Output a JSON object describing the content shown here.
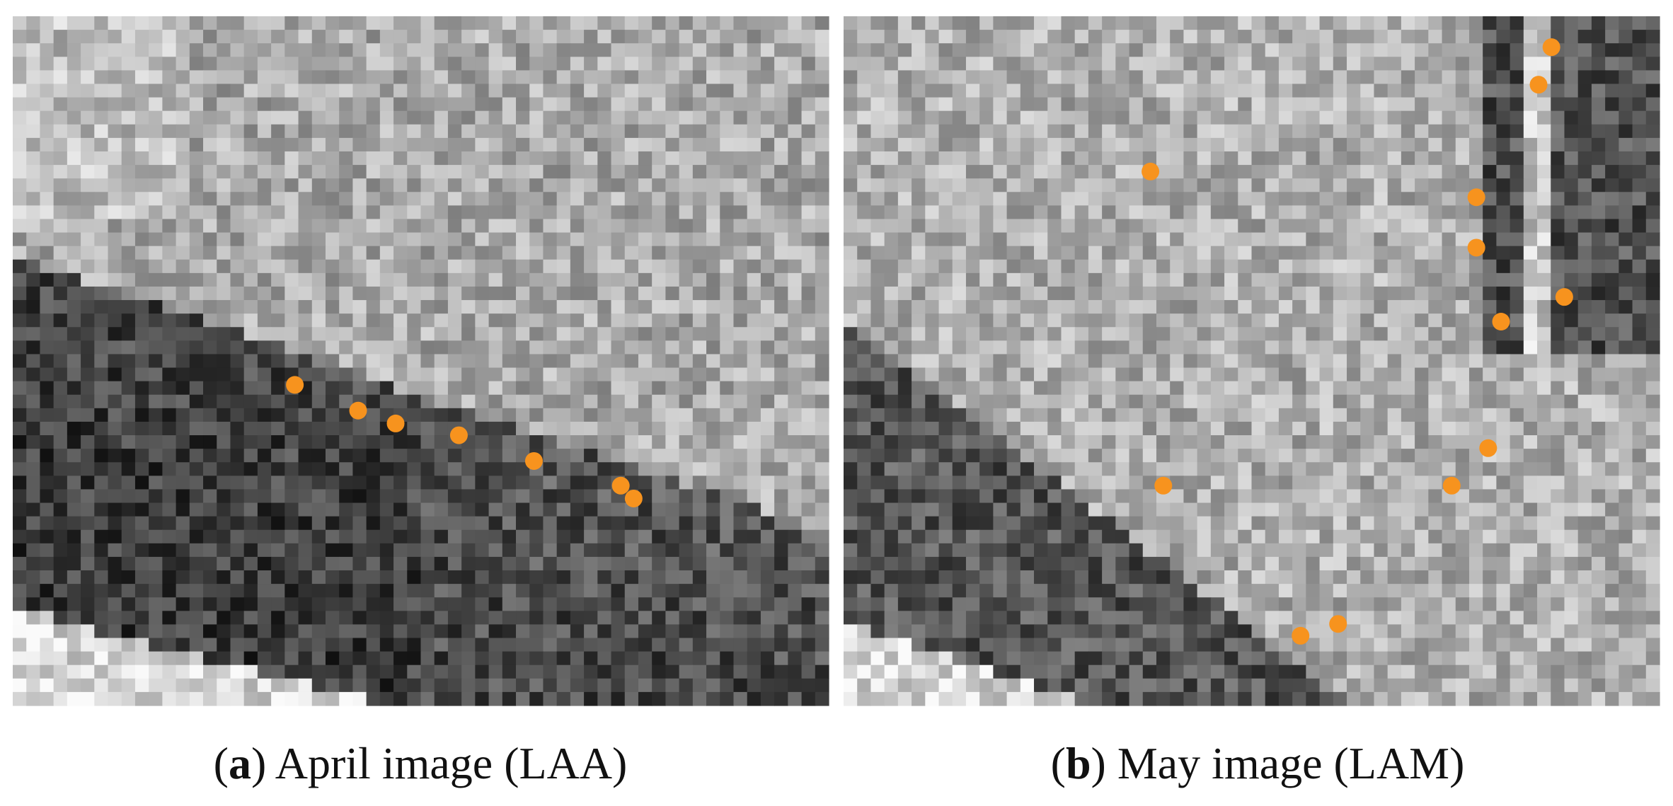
{
  "figure": {
    "panels": [
      {
        "caption_parts": [
          "(",
          "a",
          ") April image (LAA)"
        ]
      },
      {
        "caption_parts": [
          "(",
          "b",
          ") May image (LAM)"
        ]
      }
    ]
  }
}
